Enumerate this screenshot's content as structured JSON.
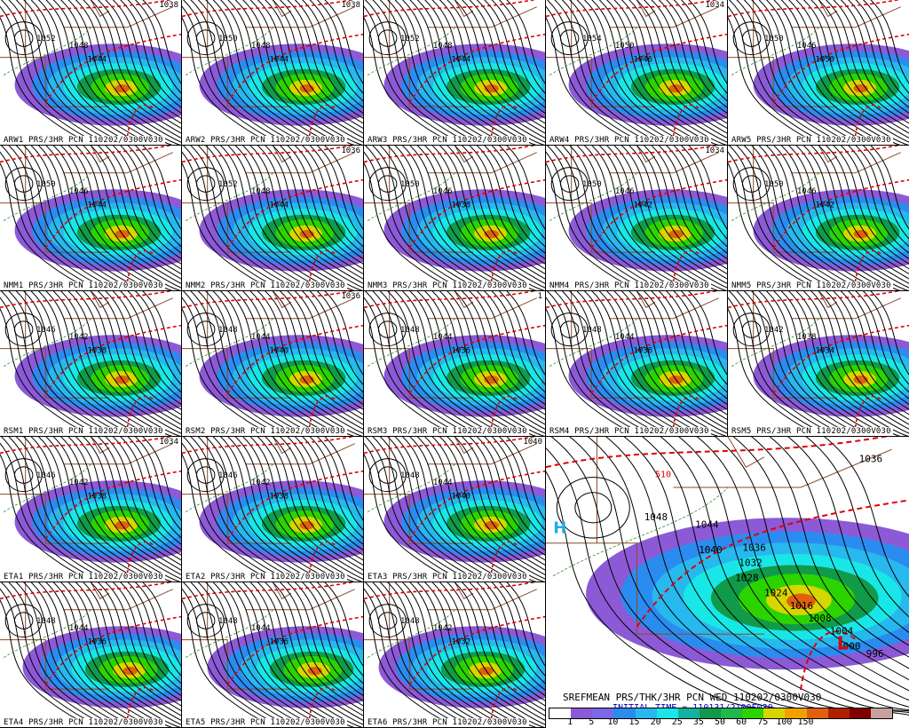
{
  "panels": [
    {
      "label": "ARW1 PRS/3HR PCN 110202/0300V030",
      "corner": "1038",
      "isobars": [
        "1052",
        "1048",
        "1044"
      ]
    },
    {
      "label": "ARW2 PRS/3HR PCN 110202/0300V030",
      "corner": "1038",
      "isobars": [
        "1050",
        "1048",
        "1044"
      ]
    },
    {
      "label": "ARW3 PRS/3HR PCN 110202/0300V030",
      "corner": "",
      "isobars": [
        "1052",
        "1048",
        "1044"
      ]
    },
    {
      "label": "ARW4 PRS/3HR PCN 110202/0300V030",
      "corner": "1034",
      "isobars": [
        "1054",
        "1050",
        "1046"
      ]
    },
    {
      "label": "ARW5 PRS/3HR PCN 110202/0300V030",
      "corner": "",
      "isobars": [
        "1050",
        "1046",
        "1050"
      ]
    },
    {
      "label": "NMM1 PRS/3HR PCN 110202/0300V030",
      "corner": "",
      "isobars": [
        "1050",
        "1046",
        "1044"
      ]
    },
    {
      "label": "NMM2 PRS/3HR PCN 110202/0300V030",
      "corner": "1036",
      "isobars": [
        "1052",
        "1048",
        "1044"
      ]
    },
    {
      "label": "NMM3 PRS/3HR PCN 110202/0300V030",
      "corner": "",
      "isobars": [
        "1050",
        "1046",
        "1038"
      ]
    },
    {
      "label": "NMM4 PRS/3HR PCN 110202/0300V030",
      "corner": "1034",
      "isobars": [
        "1050",
        "1046",
        "1042"
      ]
    },
    {
      "label": "NMM5 PRS/3HR PCN 110202/0300V030",
      "corner": "",
      "isobars": [
        "1050",
        "1046",
        "1042"
      ]
    },
    {
      "label": "RSM1 PRS/3HR PCN 110202/0300V030",
      "corner": "",
      "isobars": [
        "1046",
        "1042",
        "1038"
      ]
    },
    {
      "label": "RSM2 PRS/3HR PCN 110202/0300V030",
      "corner": "1036",
      "isobars": [
        "1048",
        "1044",
        "1040"
      ]
    },
    {
      "label": "RSM3 PRS/3HR PCN 110202/0300V030",
      "corner": "1",
      "isobars": [
        "1048",
        "1044",
        "1036"
      ]
    },
    {
      "label": "RSM4 PRS/3HR PCN 110202/0300V030",
      "corner": "",
      "isobars": [
        "1048",
        "1044",
        "1036"
      ]
    },
    {
      "label": "RSM5 PRS/3HR PCN 110202/0300V030",
      "corner": "",
      "isobars": [
        "1042",
        "1038",
        "1034"
      ]
    },
    {
      "label": "ETA1 PRS/3HR PCN 110202/0300V030",
      "corner": "1034",
      "isobars": [
        "1046",
        "1042",
        "1038"
      ]
    },
    {
      "label": "ETA2 PRS/3HR PCN 110202/0300V030",
      "corner": "",
      "isobars": [
        "1046",
        "1042",
        "1038"
      ]
    },
    {
      "label": "ETA3 PRS/3HR PCN 110202/0300V030",
      "corner": "1040",
      "isobars": [
        "1048",
        "1044",
        "1040"
      ]
    },
    {
      "label": "ETA4 PRS/3HR PCN 110202/0300V030",
      "corner": "",
      "isobars": [
        "1048",
        "1044",
        "1036"
      ]
    },
    {
      "label": "ETA5 PRS/3HR PCN 110202/0300V030",
      "corner": "",
      "isobars": [
        "1048",
        "1044",
        "1036"
      ]
    },
    {
      "label": "ETA6 PRS/3HR PCN 110202/0300V030",
      "corner": "",
      "isobars": [
        "1048",
        "1042",
        "1032"
      ]
    }
  ],
  "mean": {
    "label": "SREFMEAN PRS/THK/3HR PCN WED 110202/0300V030",
    "init": "INITIAL TIME = 110131/2100F030",
    "isobars": [
      "1036",
      "1048",
      "1044",
      "1040",
      "1036",
      "1032",
      "1028",
      "1024",
      "1016",
      "1008",
      "1004",
      "1000",
      "996"
    ],
    "thickness_label": "510",
    "high_marker": "H",
    "low_marker": "L"
  },
  "colorbar": {
    "labels": [
      "1",
      "5",
      "10",
      "15",
      "20",
      "25",
      "35",
      "50",
      "60",
      "75",
      "100",
      "150"
    ],
    "colors": [
      "#ffffff",
      "#8c5ad6",
      "#7b68e8",
      "#2b8cf0",
      "#27b8ee",
      "#19e6e6",
      "#14b0a0",
      "#119a49",
      "#1fb84a",
      "#2bd400",
      "#d6d600",
      "#f0a000",
      "#e06010",
      "#b02000",
      "#800000",
      "#c8a0a0"
    ]
  }
}
